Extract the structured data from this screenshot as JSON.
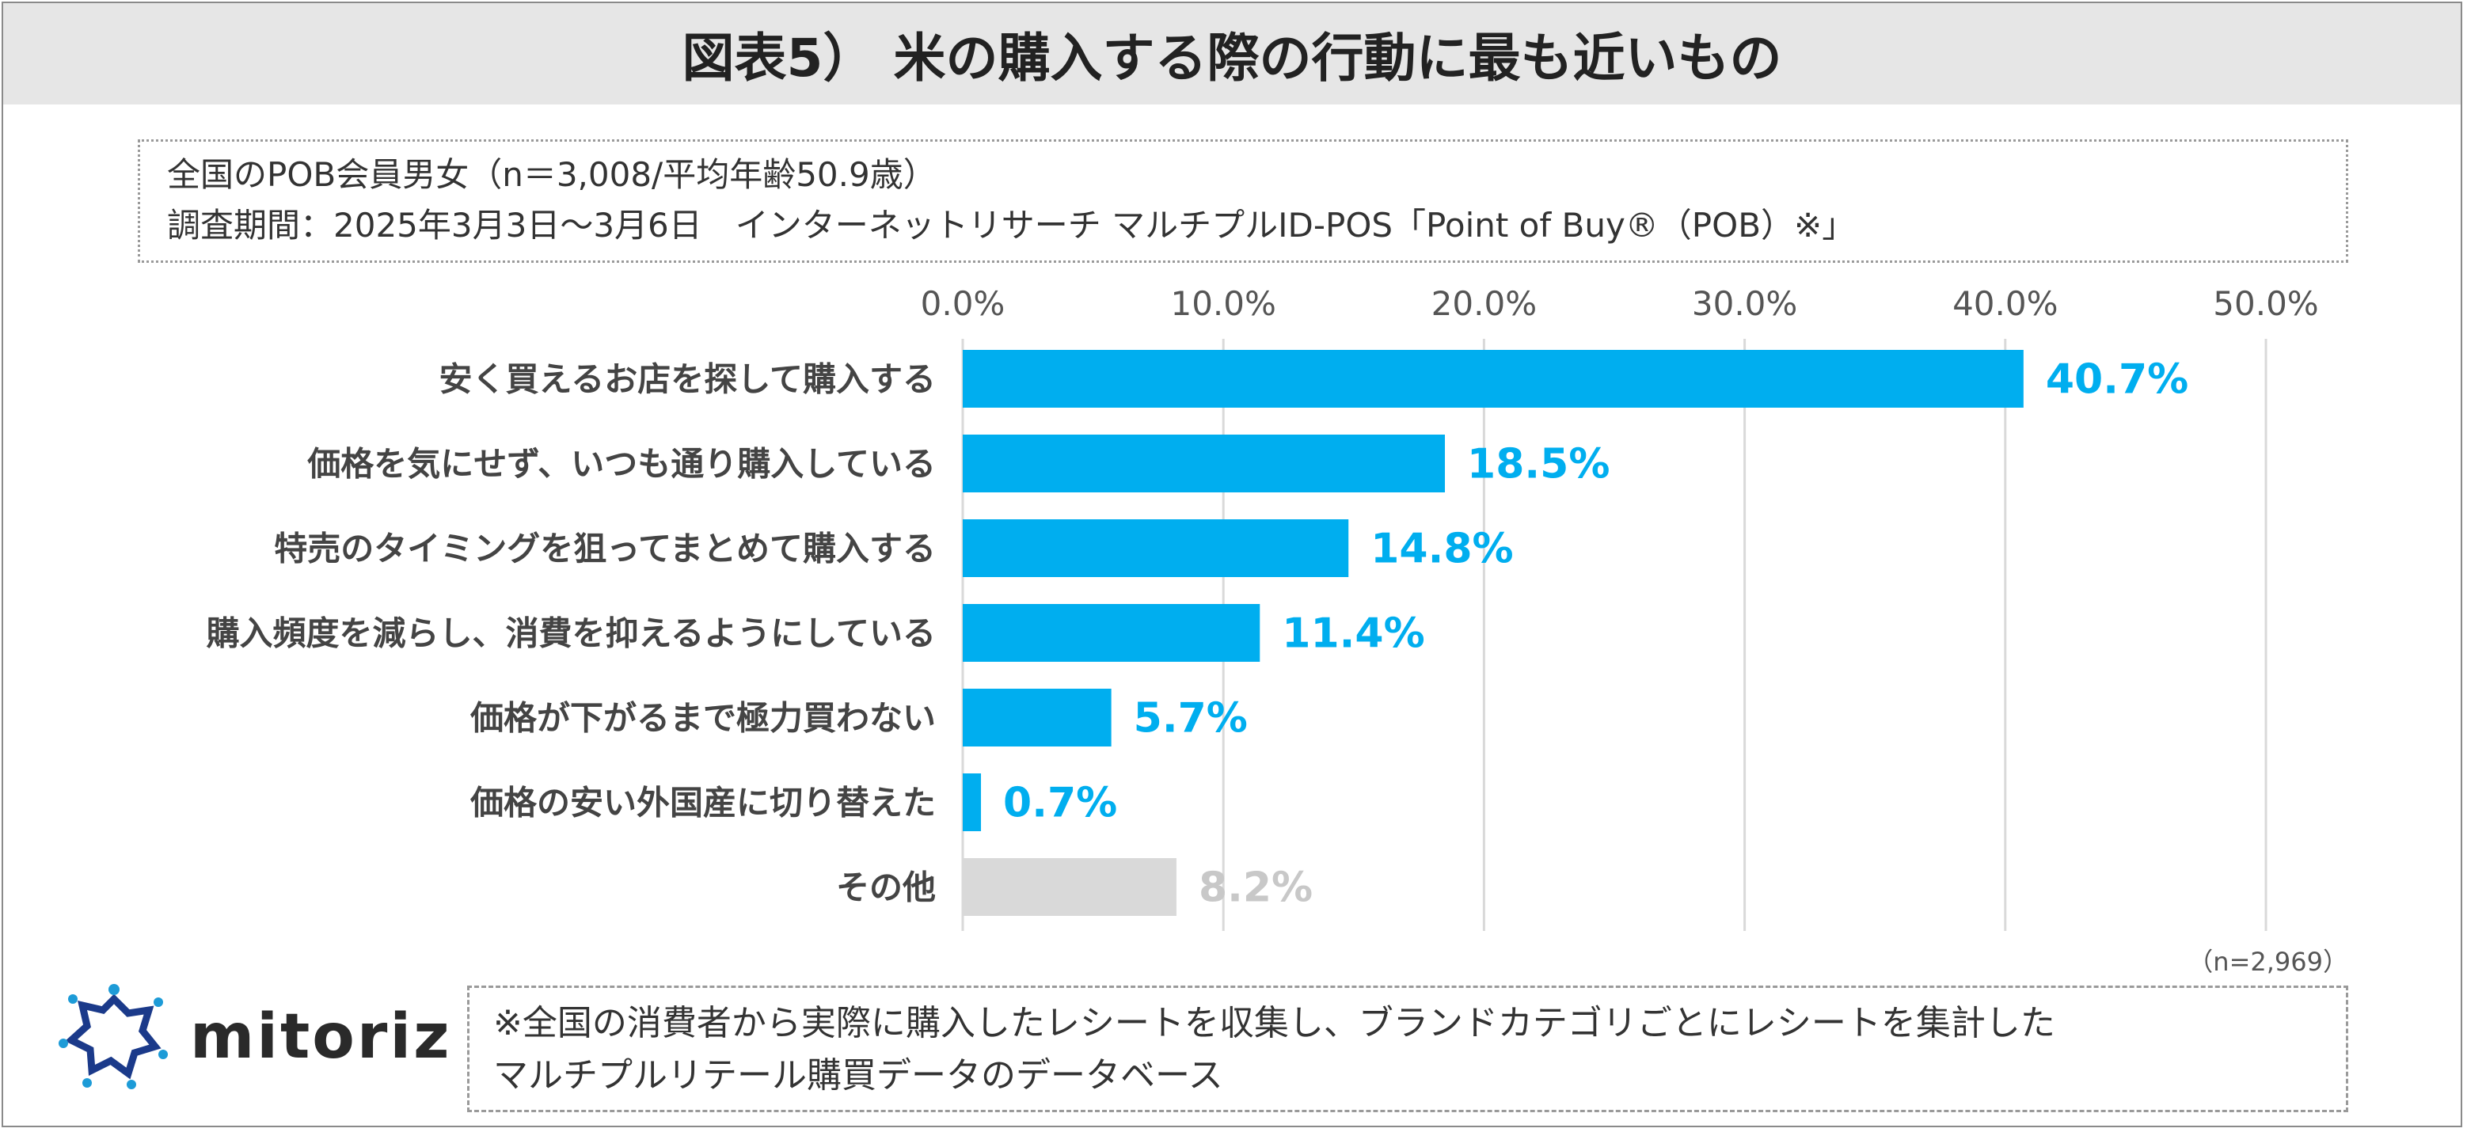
{
  "title": "図表5） 米の購入する際の行動に最も近いもの",
  "info": {
    "line1": "全国のPOB会員男女（n＝3,008/平均年齢50.9歳）",
    "line2": "調査期間：2025年3月3日～3月6日　インターネットリサーチ マルチプルID-POS「Point of Buy®（POB）※」"
  },
  "sample_size": "（n=2,969）",
  "note": {
    "line1": "※全国の消費者から実際に購入したレシートを収集し、ブランドカテゴリごとにレシートを集計した",
    "line2": "マルチプルリテール購買データのデータベース"
  },
  "logo": {
    "text": "mitoriz",
    "icon": "mitoriz-logo-icon"
  },
  "colors": {
    "bar": "#00aeef",
    "bar_other": "#d9d9d9",
    "label": "#00aeef",
    "label_other": "#c8c8c8",
    "grid": "#d9d9d9",
    "title_bg": "#e6e6e6"
  },
  "chart_data": {
    "type": "bar",
    "orientation": "horizontal",
    "title": "",
    "xlabel": "",
    "ylabel": "",
    "xlim": [
      0,
      50
    ],
    "ticks": [
      "0.0%",
      "10.0%",
      "20.0%",
      "30.0%",
      "40.0%",
      "50.0%"
    ],
    "tick_values": [
      0,
      10,
      20,
      30,
      40,
      50
    ],
    "grid": true,
    "categories": [
      "安く買えるお店を探して購入する",
      "価格を気にせず、いつも通り購入している",
      "特売のタイミングを狙ってまとめて購入する",
      "購入頻度を減らし、消費を抑えるようにしている",
      "価格が下がるまで極力買わない",
      "価格の安い外国産に切り替えた",
      "その他"
    ],
    "values": [
      40.7,
      18.5,
      14.8,
      11.4,
      5.7,
      0.7,
      8.2
    ],
    "value_labels": [
      "40.7%",
      "18.5%",
      "14.8%",
      "11.4%",
      "5.7%",
      "0.7%",
      "8.2%"
    ]
  }
}
